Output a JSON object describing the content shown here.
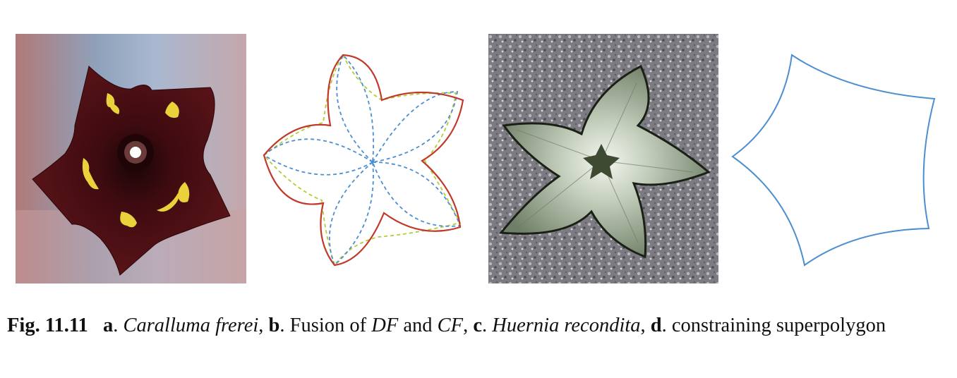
{
  "caption": {
    "fig_label": "Fig. 11.11",
    "a_letter": "a",
    "a_species": "Caralluma frerei",
    "b_letter": "b",
    "b_text_1": "Fusion of ",
    "b_df": "DF",
    "b_text_2": " and ",
    "b_cf": "CF",
    "c_letter": "c",
    "c_species": "Huernia recondita",
    "d_letter": "d",
    "d_text": "constraining superpolygon"
  },
  "colors": {
    "flower_a": "#4a0d12",
    "flower_a_spots": "#e9d23a",
    "df_curve": "#c0392b",
    "cf_curve": "#4d8ed0",
    "fusion_dashed_green": "#b3cc33",
    "flower_c": "#8a9a82",
    "superpolygon": "#4d8ed0"
  }
}
